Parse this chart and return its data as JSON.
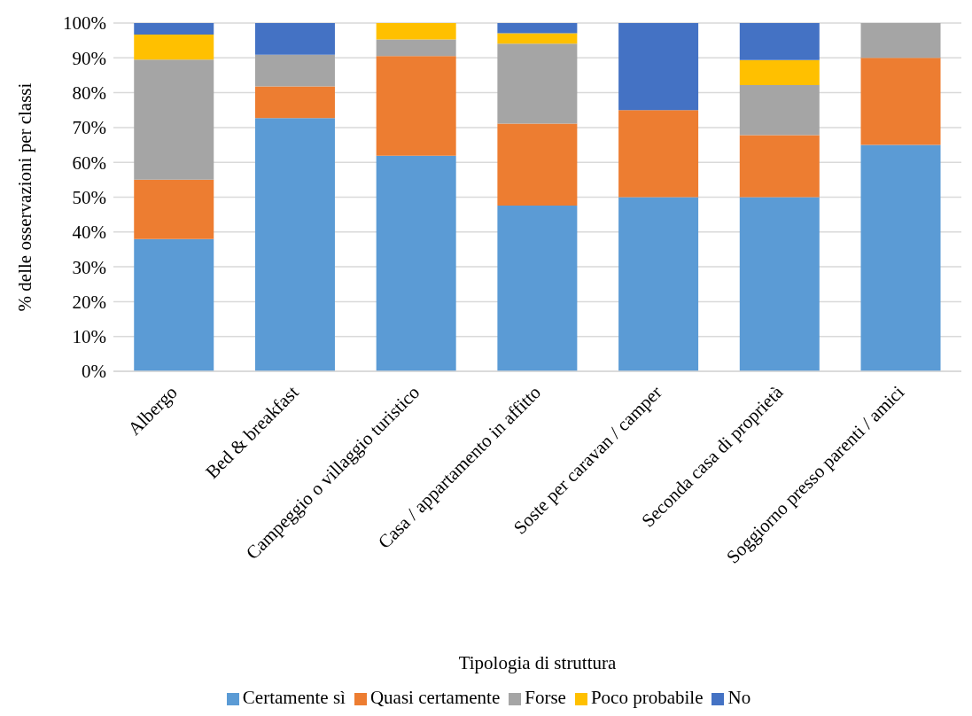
{
  "chart_data": {
    "type": "bar",
    "stacked": true,
    "xlabel": "Tipologia di struttura",
    "ylabel": "% delle osservazioni per classi",
    "categories": [
      "Albergo",
      "Bed & breakfast",
      "Campeggio o villaggio turistico",
      "Casa / appartamento in affitto",
      "Soste per caravan / camper",
      "Seconda casa di proprietà",
      "Soggiorno presso parenti / amici"
    ],
    "series": [
      {
        "name": "Certamente sì",
        "color": "#5b9bd5",
        "values": [
          38,
          72.7,
          61.9,
          47.6,
          50,
          50,
          65
        ]
      },
      {
        "name": "Quasi certamente",
        "color": "#ed7d31",
        "values": [
          17,
          9.1,
          28.6,
          23.5,
          25,
          17.8,
          25
        ]
      },
      {
        "name": "Forse",
        "color": "#a5a5a5",
        "values": [
          34.5,
          9.1,
          4.8,
          23,
          0,
          14.4,
          10
        ]
      },
      {
        "name": "Poco probabile",
        "color": "#ffc000",
        "values": [
          7.2,
          0,
          4.8,
          3,
          0,
          7.2,
          0
        ]
      },
      {
        "name": "No",
        "color": "#4472c4",
        "values": [
          3.3,
          9.1,
          0,
          2.9,
          25,
          10.6,
          0
        ]
      }
    ],
    "ylim": [
      0,
      100
    ],
    "yticks": [
      {
        "value": 0,
        "label": "0%"
      },
      {
        "value": 10,
        "label": "10%"
      },
      {
        "value": 20,
        "label": "20%"
      },
      {
        "value": 30,
        "label": "30%"
      },
      {
        "value": 40,
        "label": "40%"
      },
      {
        "value": 50,
        "label": "50%"
      },
      {
        "value": 60,
        "label": "60%"
      },
      {
        "value": 70,
        "label": "70%"
      },
      {
        "value": 80,
        "label": "80%"
      },
      {
        "value": 90,
        "label": "90%"
      },
      {
        "value": 100,
        "label": "100%"
      }
    ],
    "grid": "y",
    "legend": "bottom"
  }
}
